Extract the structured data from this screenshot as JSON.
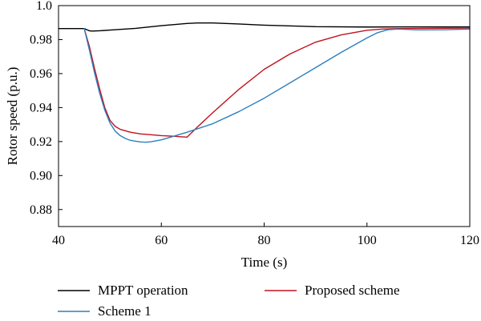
{
  "chart_data": {
    "type": "line",
    "title": "",
    "xlabel": "Time (s)",
    "ylabel": "Rotor speed (p.u.)",
    "xlim": [
      40,
      120
    ],
    "ylim": [
      0.87,
      1.0
    ],
    "xticks": [
      40,
      60,
      80,
      100,
      120
    ],
    "xtick_labels": [
      "40",
      "60",
      "80",
      "100",
      "120"
    ],
    "yticks": [
      0.88,
      0.9,
      0.92,
      0.94,
      0.96,
      0.98,
      1.0
    ],
    "ytick_labels": [
      "0.88",
      "0.90",
      "0.92",
      "0.94",
      "0.96",
      "0.98",
      "1.0"
    ],
    "grid": false,
    "legend_position": "bottom",
    "series": [
      {
        "name": "MPPT operation",
        "color": "#000000",
        "x": [
          40,
          45,
          45.5,
          46,
          46.5,
          48,
          50,
          55,
          60,
          65,
          67,
          70,
          75,
          80,
          90,
          100,
          110,
          120
        ],
        "y": [
          0.9865,
          0.9865,
          0.9858,
          0.9852,
          0.985,
          0.9852,
          0.9856,
          0.9866,
          0.9882,
          0.9895,
          0.9898,
          0.9898,
          0.9892,
          0.9885,
          0.9876,
          0.9874,
          0.9875,
          0.9875
        ]
      },
      {
        "name": "Proposed scheme",
        "color": "#c0121d",
        "x": [
          45,
          46,
          47,
          48,
          49,
          50,
          51,
          52,
          54,
          56,
          58,
          60,
          62,
          63,
          64,
          65,
          67,
          70,
          75,
          80,
          85,
          90,
          95,
          100,
          103,
          106,
          110,
          115,
          120
        ],
        "y": [
          0.9865,
          0.976,
          0.963,
          0.951,
          0.94,
          0.9325,
          0.929,
          0.9272,
          0.9255,
          0.9245,
          0.924,
          0.9235,
          0.9232,
          0.923,
          0.9228,
          0.9226,
          0.9285,
          0.937,
          0.9505,
          0.9625,
          0.9715,
          0.9785,
          0.9828,
          0.9855,
          0.9862,
          0.9865,
          0.9866,
          0.9867,
          0.9868
        ]
      },
      {
        "name": "Scheme 1",
        "color": "#2b7fbf",
        "x": [
          45,
          46,
          47,
          48,
          49,
          50,
          51,
          52,
          53,
          54,
          55,
          56,
          57,
          58,
          60,
          62,
          65,
          70,
          75,
          80,
          85,
          90,
          95,
          100,
          102,
          104,
          106,
          110,
          115,
          120
        ],
        "y": [
          0.9865,
          0.974,
          0.9605,
          0.9485,
          0.9385,
          0.931,
          0.9262,
          0.9235,
          0.9218,
          0.9207,
          0.9202,
          0.9198,
          0.9196,
          0.9199,
          0.921,
          0.9228,
          0.9255,
          0.9305,
          0.9375,
          0.9455,
          0.9545,
          0.9635,
          0.9725,
          0.981,
          0.984,
          0.9858,
          0.9862,
          0.9857,
          0.9858,
          0.9862
        ]
      }
    ]
  }
}
